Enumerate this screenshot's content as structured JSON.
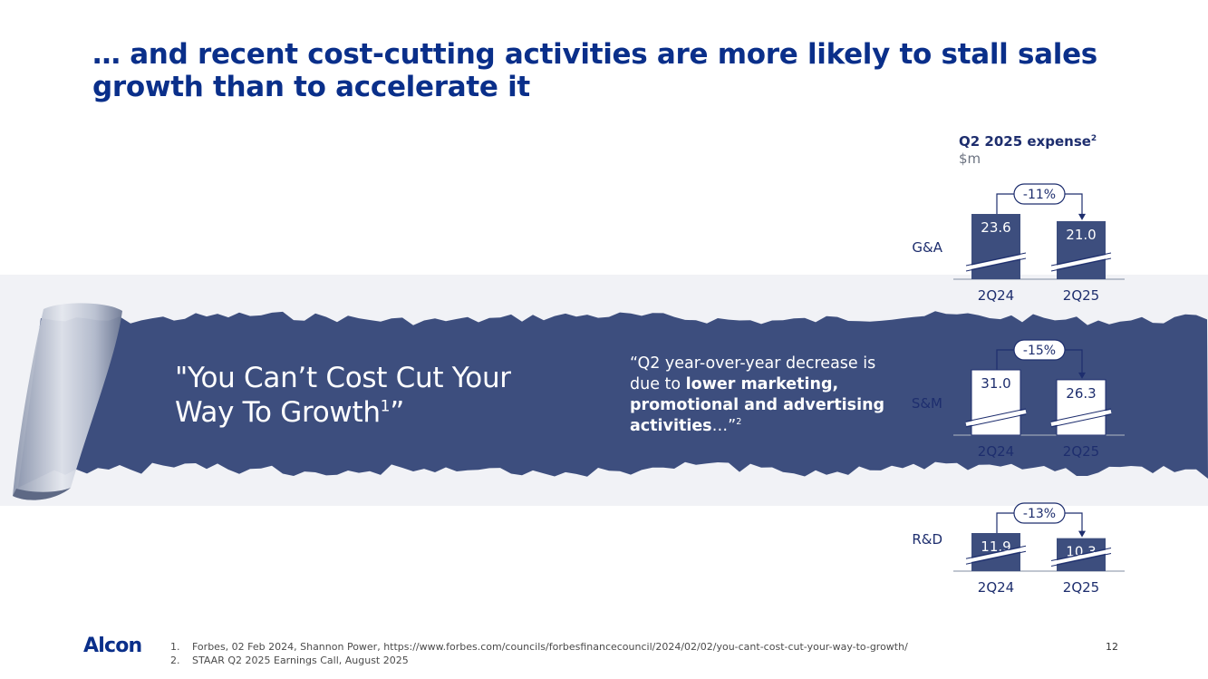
{
  "title": "… and recent cost-cutting activities are more likely to stall sales growth than to accelerate it",
  "banner": {
    "quote_main": "\"You Can’t Cost Cut Your Way To Growth",
    "quote_main_sup": "1",
    "quote_main_end": "”",
    "quote_side_prefix": "“Q2 year-over-year decrease is due to ",
    "quote_side_bold": "lower marketing, promotional and advertising activities",
    "quote_side_suffix": "…”",
    "quote_side_sup": "2"
  },
  "expense": {
    "title": "Q2 2025 expense",
    "title_sup": "2",
    "unit": "$m"
  },
  "chart_data": {
    "type": "bar",
    "title": "Q2 2025 expense",
    "ylabel": "$m",
    "categories": [
      "2Q24",
      "2Q25"
    ],
    "groups": [
      {
        "name": "G&A",
        "values": [
          23.6,
          21.0
        ],
        "change": "-11%",
        "fill": "#3d4e7e",
        "label_color": "#ffffff"
      },
      {
        "name": "S&M",
        "values": [
          31.0,
          26.3
        ],
        "change": "-15%",
        "fill": "#ffffff",
        "label_color": "#1e2e6e"
      },
      {
        "name": "R&D",
        "values": [
          11.9,
          10.3
        ],
        "change": "-13%",
        "fill": "#3d4e7e",
        "label_color": "#ffffff"
      }
    ],
    "axis_break": true
  },
  "colors": {
    "title": "#0a2f8a",
    "banner": "#3d4e7e",
    "band": "#f1f2f6",
    "curl_dark": "#7f8aa3",
    "curl_light": "#dfe3ea"
  },
  "footer": {
    "logo": "Alcon",
    "footnotes": [
      {
        "num": "1.",
        "text": "Forbes, 02 Feb 2024, Shannon Power, https://www.forbes.com/councils/forbesfinancecouncil/2024/02/02/you-cant-cost-cut-your-way-to-growth/"
      },
      {
        "num": "2.",
        "text": "STAAR Q2 2025 Earnings Call, August 2025"
      }
    ],
    "page_number": "12"
  }
}
